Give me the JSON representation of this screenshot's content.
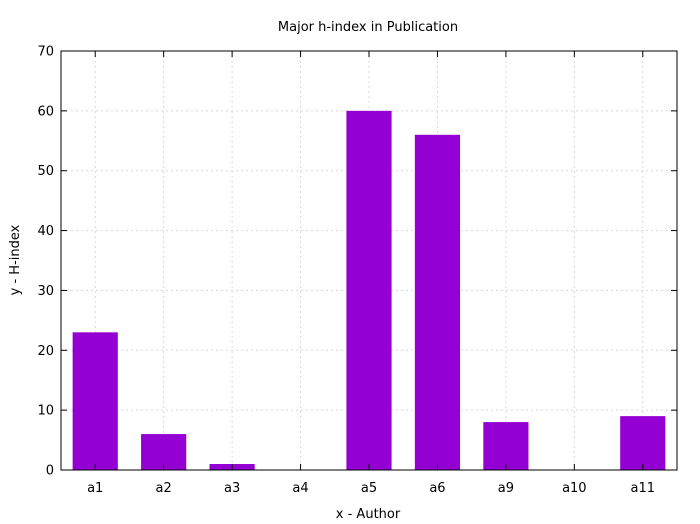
{
  "chart_data": {
    "type": "bar",
    "title": "Major h-index in Publication",
    "xlabel": "x - Author",
    "ylabel": "y - H-index",
    "categories": [
      "a1",
      "a2",
      "a3",
      "a4",
      "a5",
      "a6",
      "a9",
      "a10",
      "a11"
    ],
    "values": [
      23,
      6,
      1,
      0,
      60,
      56,
      8,
      0,
      9
    ],
    "ylim": [
      0,
      70
    ],
    "yticks": [
      0,
      10,
      20,
      30,
      40,
      50,
      60,
      70
    ],
    "grid": true,
    "bar_color": "#9400d3"
  }
}
